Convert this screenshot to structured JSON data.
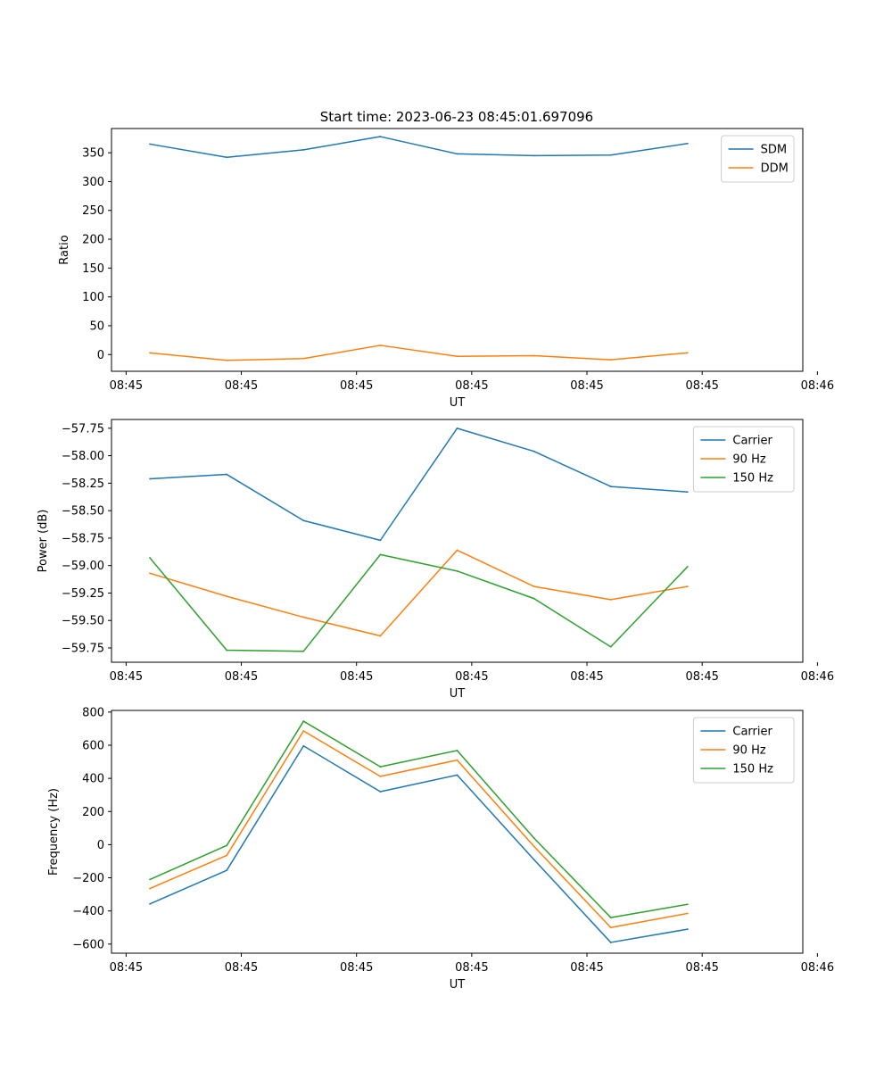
{
  "title": "Start time: 2023-06-23 08:45:01.697096",
  "colors": {
    "c0": "#1f77b4",
    "c1": "#ff7f0e",
    "c2": "#2ca02c"
  },
  "chart_data": [
    {
      "type": "line",
      "title": "Start time: 2023-06-23 08:45:01.697096",
      "xlabel": "UT",
      "ylabel": "Ratio",
      "xlim": [
        -0.5,
        8.5
      ],
      "x_ticks": [
        -0.31,
        1.19,
        2.69,
        4.19,
        5.69,
        7.19,
        8.69
      ],
      "x_tick_labels": [
        "08:45",
        "08:45",
        "08:45",
        "08:45",
        "08:45",
        "08:45",
        "08:46"
      ],
      "ylim": [
        -29,
        392
      ],
      "y_ticks": [
        0,
        50,
        100,
        150,
        200,
        250,
        300,
        350
      ],
      "y_tick_labels": [
        "0",
        "50",
        "100",
        "150",
        "200",
        "250",
        "300",
        "350"
      ],
      "legend_position": "top-right",
      "x": [
        0,
        1,
        2,
        3,
        4,
        5,
        6,
        7
      ],
      "series": [
        {
          "name": "SDM",
          "color": "#1f77b4",
          "values": [
            365,
            342,
            355,
            378,
            348,
            345,
            346,
            366
          ]
        },
        {
          "name": "DDM",
          "color": "#ff7f0e",
          "values": [
            3,
            -10,
            -7,
            16,
            -3,
            -2,
            -9,
            3
          ]
        }
      ]
    },
    {
      "type": "line",
      "xlabel": "UT",
      "ylabel": "Power (dB)",
      "xlim": [
        -0.5,
        8.5
      ],
      "x_ticks": [
        -0.31,
        1.19,
        2.69,
        4.19,
        5.69,
        7.19,
        8.69
      ],
      "x_tick_labels": [
        "08:45",
        "08:45",
        "08:45",
        "08:45",
        "08:45",
        "08:45",
        "08:46"
      ],
      "ylim": [
        -59.88,
        -57.67
      ],
      "y_ticks": [
        -59.75,
        -59.5,
        -59.25,
        -59.0,
        -58.75,
        -58.5,
        -58.25,
        -58.0,
        -57.75
      ],
      "y_tick_labels": [
        "−59.75",
        "−59.50",
        "−59.25",
        "−59.00",
        "−58.75",
        "−58.50",
        "−58.25",
        "−58.00",
        "−57.75"
      ],
      "legend_position": "top-right",
      "x": [
        0,
        1,
        2,
        3,
        4,
        5,
        6,
        7
      ],
      "series": [
        {
          "name": "Carrier",
          "color": "#1f77b4",
          "values": [
            -58.21,
            -58.17,
            -58.59,
            -58.77,
            -57.75,
            -57.96,
            -58.28,
            -58.33
          ]
        },
        {
          "name": "90 Hz",
          "color": "#ff7f0e",
          "values": [
            -59.07,
            -59.28,
            -59.47,
            -59.64,
            -58.86,
            -59.19,
            -59.31,
            -59.19
          ]
        },
        {
          "name": "150 Hz",
          "color": "#2ca02c",
          "values": [
            -58.93,
            -59.77,
            -59.78,
            -58.9,
            -59.05,
            -59.3,
            -59.74,
            -59.01
          ]
        }
      ]
    },
    {
      "type": "line",
      "xlabel": "UT",
      "ylabel": "Frequency (Hz)",
      "xlim": [
        -0.5,
        8.5
      ],
      "x_ticks": [
        -0.31,
        1.19,
        2.69,
        4.19,
        5.69,
        7.19,
        8.69
      ],
      "x_tick_labels": [
        "08:45",
        "08:45",
        "08:45",
        "08:45",
        "08:45",
        "08:45",
        "08:46"
      ],
      "ylim": [
        -655,
        810
      ],
      "y_ticks": [
        -600,
        -400,
        -200,
        0,
        200,
        400,
        600,
        800
      ],
      "y_tick_labels": [
        "−600",
        "−400",
        "−200",
        "0",
        "200",
        "400",
        "600",
        "800"
      ],
      "legend_position": "top-right",
      "x": [
        0,
        1,
        2,
        3,
        4,
        5,
        6,
        7
      ],
      "series": [
        {
          "name": "Carrier",
          "color": "#1f77b4",
          "values": [
            -358,
            -155,
            596,
            320,
            420,
            -90,
            -590,
            -510
          ]
        },
        {
          "name": "90 Hz",
          "color": "#ff7f0e",
          "values": [
            -265,
            -65,
            686,
            412,
            510,
            -10,
            -500,
            -415
          ]
        },
        {
          "name": "150 Hz",
          "color": "#2ca02c",
          "values": [
            -210,
            -5,
            745,
            470,
            568,
            40,
            -440,
            -360
          ]
        }
      ]
    }
  ]
}
